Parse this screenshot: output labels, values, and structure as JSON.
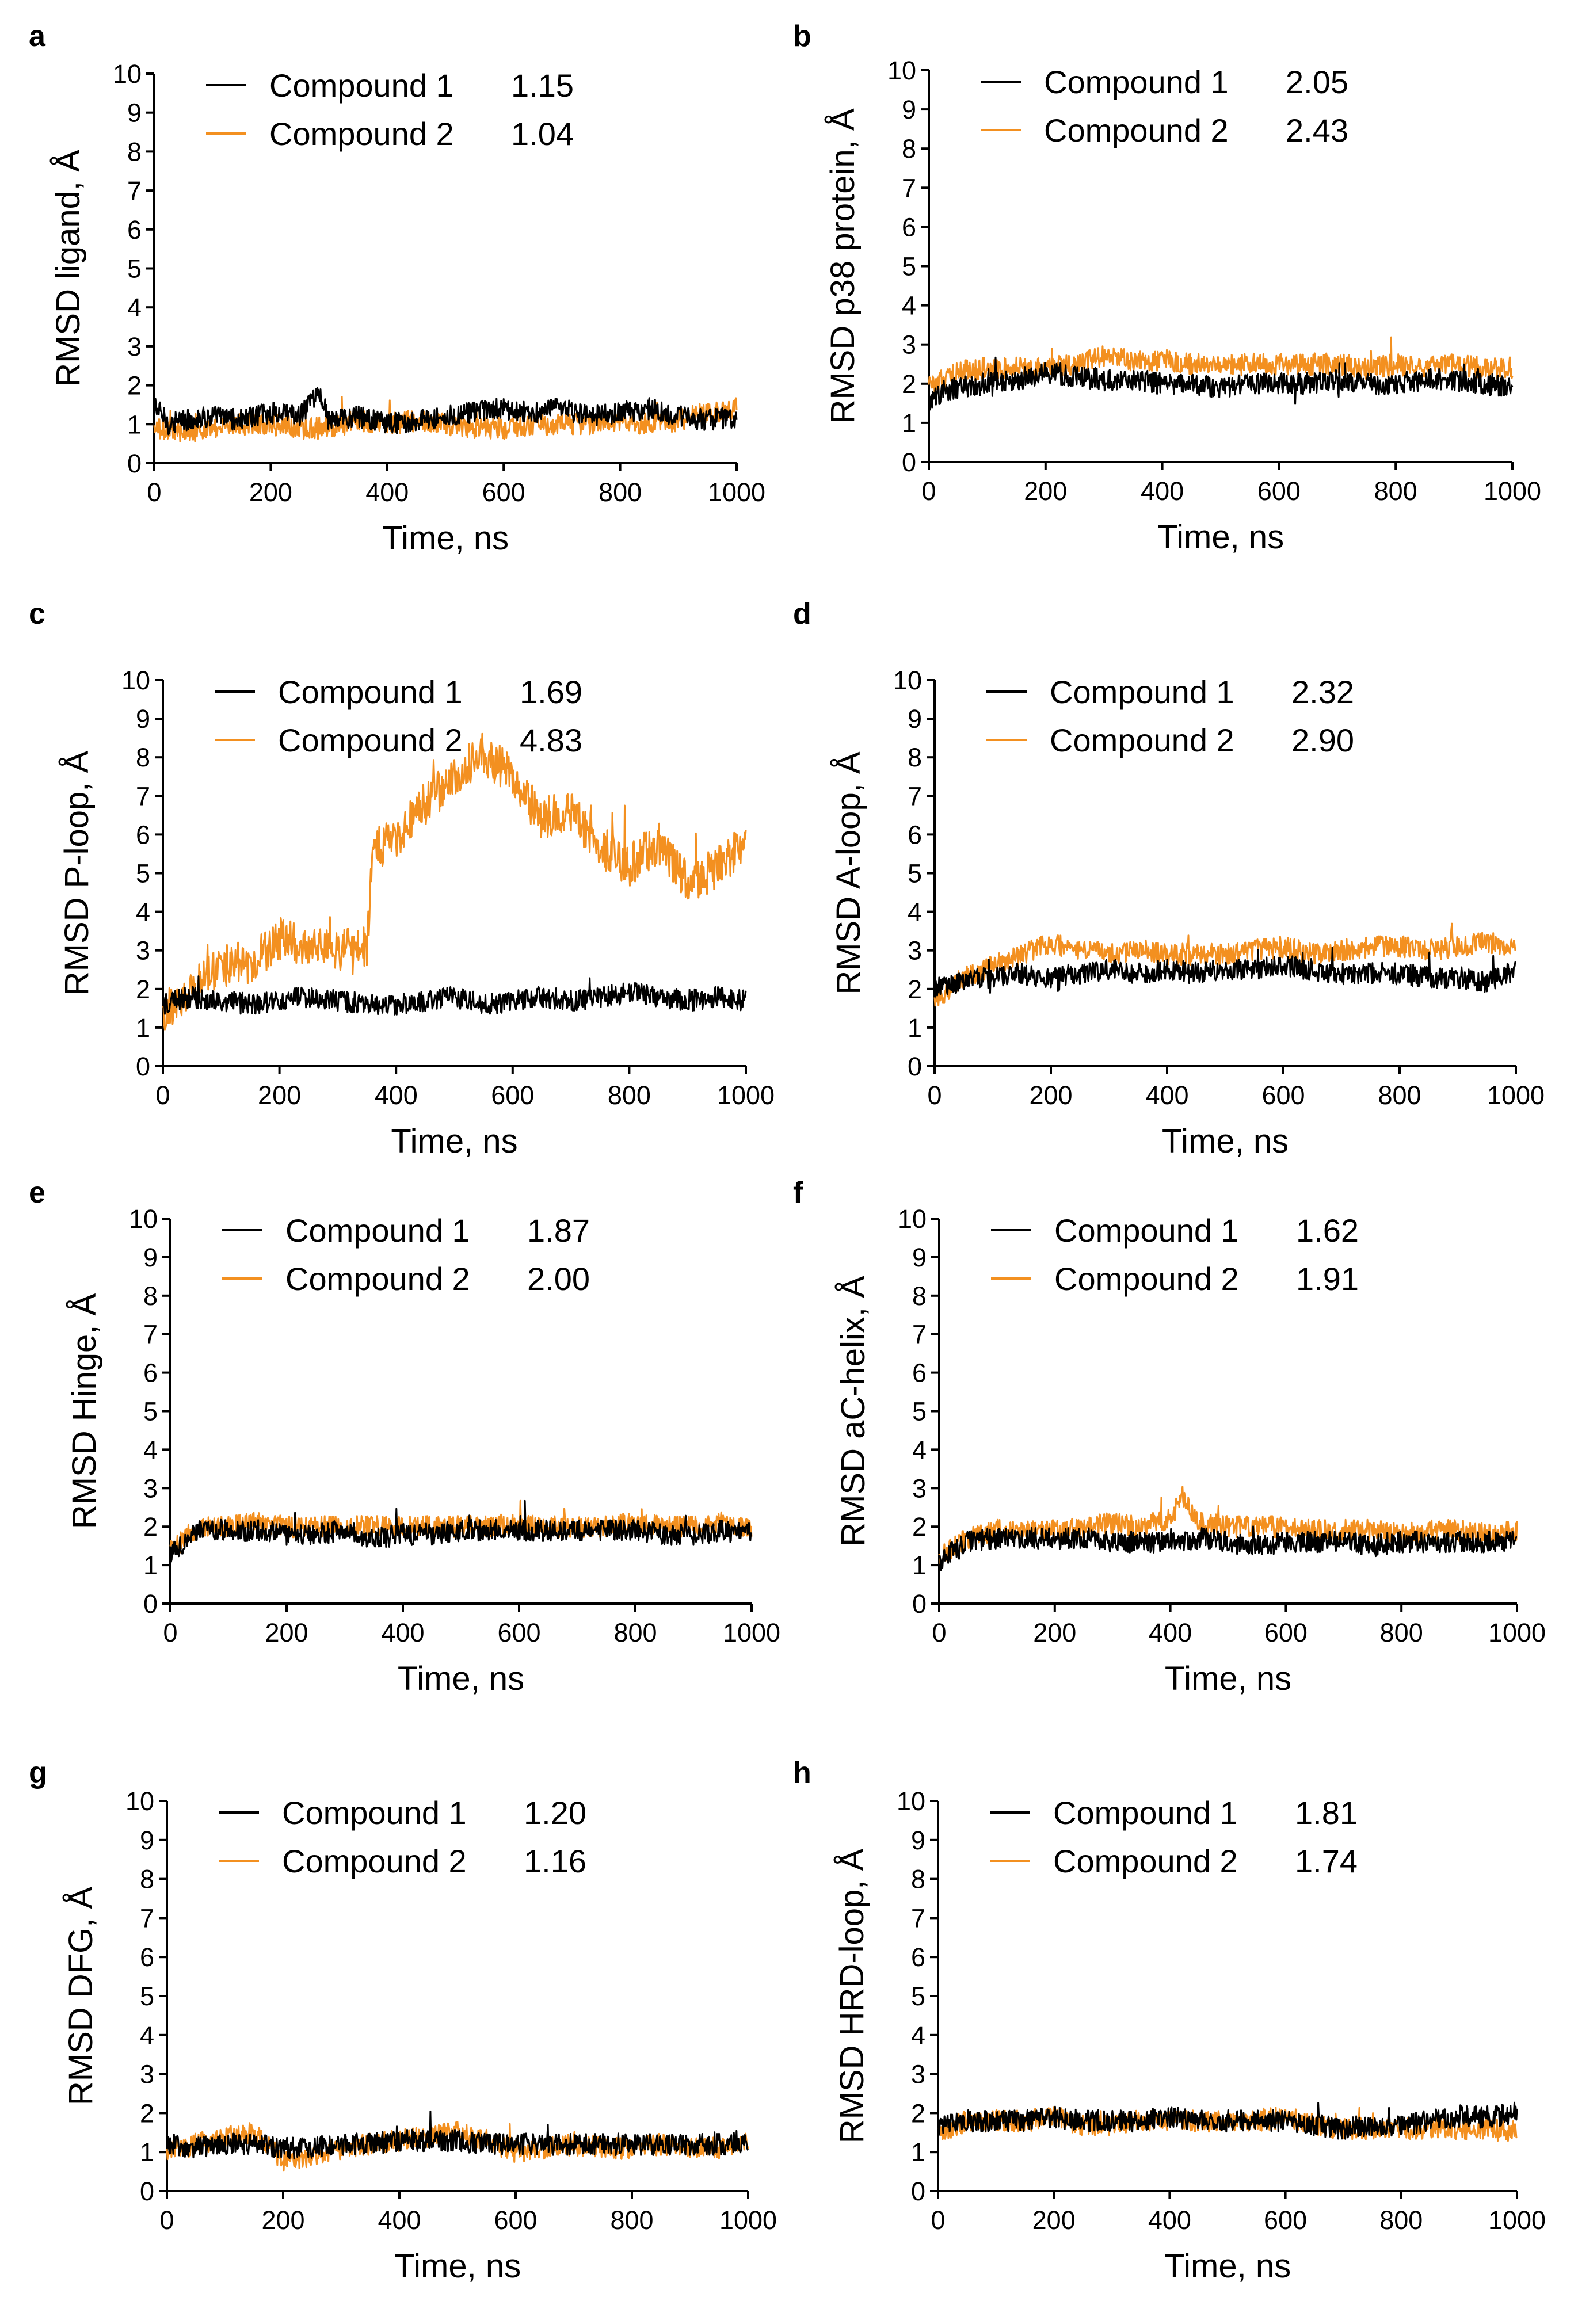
{
  "colors": {
    "compound_1": "#000000",
    "compound_2": "#f39020",
    "axis": "#000000"
  },
  "series_names": [
    "Compound 1",
    "Compound 2"
  ],
  "chart_data": [
    {
      "panel": "a",
      "type": "line",
      "xlabel": "Time, ns",
      "ylabel": "RMSD ligand, Å",
      "xlim": [
        0,
        1000
      ],
      "ylim": [
        0,
        10
      ],
      "xticks": [
        0,
        200,
        400,
        600,
        800,
        1000
      ],
      "yticks": [
        0,
        1,
        2,
        3,
        4,
        5,
        6,
        7,
        8,
        9,
        10
      ],
      "legend_position": "top",
      "series": [
        {
          "name": "Compound 1",
          "mean_label": "1.15",
          "x": [
            0,
            25,
            50,
            100,
            150,
            200,
            250,
            285,
            300,
            350,
            400,
            450,
            500,
            550,
            600,
            650,
            700,
            750,
            800,
            850,
            900,
            950,
            1000
          ],
          "y": [
            1.5,
            1.0,
            1.1,
            1.2,
            1.1,
            1.3,
            1.2,
            1.8,
            1.1,
            1.2,
            1.0,
            1.1,
            1.2,
            1.3,
            1.4,
            1.3,
            1.4,
            1.2,
            1.3,
            1.4,
            1.2,
            1.1,
            1.2
          ]
        },
        {
          "name": "Compound 2",
          "mean_label": "1.04",
          "x": [
            0,
            50,
            100,
            150,
            200,
            250,
            300,
            350,
            400,
            450,
            500,
            550,
            600,
            650,
            700,
            750,
            800,
            850,
            900,
            950,
            1000
          ],
          "y": [
            0.9,
            0.8,
            0.9,
            1.0,
            1.0,
            0.9,
            0.9,
            1.1,
            1.0,
            1.1,
            1.0,
            0.9,
            0.9,
            1.0,
            1.0,
            1.0,
            1.1,
            1.0,
            1.1,
            1.3,
            1.4
          ]
        }
      ]
    },
    {
      "panel": "b",
      "type": "line",
      "xlabel": "Time, ns",
      "ylabel": "RMSD p38 protein, Å",
      "xlim": [
        0,
        1000
      ],
      "ylim": [
        0,
        10
      ],
      "xticks": [
        0,
        200,
        400,
        600,
        800,
        1000
      ],
      "yticks": [
        0,
        1,
        2,
        3,
        4,
        5,
        6,
        7,
        8,
        9,
        10
      ],
      "legend_position": "top",
      "series": [
        {
          "name": "Compound 1",
          "mean_label": "2.05",
          "x": [
            0,
            25,
            50,
            100,
            150,
            200,
            250,
            300,
            350,
            400,
            450,
            500,
            550,
            600,
            650,
            700,
            750,
            800,
            850,
            900,
            950,
            1000
          ],
          "y": [
            1.5,
            1.8,
            1.9,
            2.0,
            2.1,
            2.3,
            2.2,
            2.1,
            2.1,
            2.0,
            2.0,
            1.9,
            2.0,
            2.0,
            2.0,
            2.1,
            2.0,
            2.0,
            2.1,
            2.1,
            2.0,
            1.9
          ]
        },
        {
          "name": "Compound 2",
          "mean_label": "2.43",
          "x": [
            0,
            25,
            50,
            100,
            150,
            200,
            250,
            300,
            350,
            400,
            450,
            500,
            550,
            600,
            650,
            700,
            750,
            800,
            850,
            900,
            950,
            1000
          ],
          "y": [
            1.9,
            2.1,
            2.3,
            2.4,
            2.4,
            2.4,
            2.5,
            2.7,
            2.6,
            2.6,
            2.5,
            2.5,
            2.5,
            2.5,
            2.5,
            2.5,
            2.4,
            2.5,
            2.4,
            2.5,
            2.4,
            2.4
          ]
        }
      ]
    },
    {
      "panel": "c",
      "type": "line",
      "xlabel": "Time, ns",
      "ylabel": "RMSD P-loop, Å",
      "xlim": [
        0,
        1000
      ],
      "ylim": [
        0,
        10
      ],
      "xticks": [
        0,
        200,
        400,
        600,
        800,
        1000
      ],
      "yticks": [
        0,
        1,
        2,
        3,
        4,
        5,
        6,
        7,
        8,
        9,
        10
      ],
      "legend_position": "top",
      "series": [
        {
          "name": "Compound 1",
          "mean_label": "1.69",
          "x": [
            0,
            50,
            100,
            150,
            200,
            250,
            300,
            350,
            400,
            450,
            500,
            550,
            600,
            650,
            700,
            750,
            800,
            850,
            900,
            950,
            1000
          ],
          "y": [
            1.6,
            1.8,
            1.7,
            1.6,
            1.7,
            1.8,
            1.7,
            1.6,
            1.6,
            1.7,
            1.8,
            1.6,
            1.7,
            1.8,
            1.7,
            1.8,
            1.9,
            1.8,
            1.7,
            1.8,
            1.7
          ]
        },
        {
          "name": "Compound 2",
          "mean_label": "4.83",
          "x": [
            0,
            50,
            100,
            150,
            200,
            250,
            300,
            350,
            360,
            400,
            450,
            500,
            550,
            600,
            650,
            700,
            750,
            800,
            850,
            900,
            950,
            1000
          ],
          "y": [
            1.4,
            2.0,
            2.6,
            2.7,
            3.3,
            3.1,
            3.0,
            3.1,
            5.6,
            5.9,
            6.8,
            7.5,
            8.1,
            7.5,
            6.4,
            6.6,
            5.7,
            5.2,
            5.8,
            4.8,
            5.1,
            5.9
          ]
        }
      ]
    },
    {
      "panel": "d",
      "type": "line",
      "xlabel": "Time, ns",
      "ylabel": "RMSD A-loop, Å",
      "xlim": [
        0,
        1000
      ],
      "ylim": [
        0,
        10
      ],
      "xticks": [
        0,
        200,
        400,
        600,
        800,
        1000
      ],
      "yticks": [
        0,
        1,
        2,
        3,
        4,
        5,
        6,
        7,
        8,
        9,
        10
      ],
      "legend_position": "top",
      "series": [
        {
          "name": "Compound 1",
          "mean_label": "2.32",
          "x": [
            0,
            50,
            100,
            150,
            200,
            250,
            300,
            350,
            400,
            450,
            500,
            550,
            600,
            650,
            700,
            750,
            800,
            850,
            900,
            950,
            1000
          ],
          "y": [
            2.0,
            2.2,
            2.3,
            2.4,
            2.3,
            2.4,
            2.5,
            2.4,
            2.5,
            2.4,
            2.5,
            2.5,
            2.6,
            2.5,
            2.4,
            2.4,
            2.4,
            2.3,
            2.3,
            2.2,
            2.5
          ]
        },
        {
          "name": "Compound 2",
          "mean_label": "2.90",
          "x": [
            0,
            50,
            100,
            150,
            200,
            250,
            300,
            350,
            400,
            450,
            500,
            550,
            600,
            650,
            700,
            750,
            800,
            850,
            900,
            950,
            1000
          ],
          "y": [
            1.7,
            2.3,
            2.6,
            2.9,
            3.2,
            3.0,
            2.9,
            3.0,
            2.9,
            2.9,
            2.9,
            3.0,
            3.1,
            2.9,
            3.0,
            3.1,
            3.1,
            3.0,
            3.1,
            3.2,
            3.1
          ]
        }
      ]
    },
    {
      "panel": "e",
      "type": "line",
      "xlabel": "Time, ns",
      "ylabel": "RMSD Hinge, Å",
      "xlim": [
        0,
        1000
      ],
      "ylim": [
        0,
        10
      ],
      "xticks": [
        0,
        200,
        400,
        600,
        800,
        1000
      ],
      "yticks": [
        0,
        1,
        2,
        3,
        4,
        5,
        6,
        7,
        8,
        9,
        10
      ],
      "legend_position": "top",
      "series": [
        {
          "name": "Compound 1",
          "mean_label": "1.87",
          "x": [
            0,
            50,
            100,
            150,
            200,
            250,
            300,
            350,
            400,
            450,
            500,
            550,
            600,
            650,
            700,
            750,
            800,
            850,
            900,
            950,
            1000
          ],
          "y": [
            1.3,
            1.9,
            1.9,
            1.9,
            1.8,
            1.8,
            1.9,
            1.7,
            1.8,
            1.8,
            1.9,
            1.9,
            1.9,
            1.9,
            1.9,
            1.9,
            1.9,
            1.8,
            1.8,
            1.9,
            1.8
          ]
        },
        {
          "name": "Compound 2",
          "mean_label": "2.00",
          "x": [
            0,
            50,
            100,
            150,
            200,
            250,
            300,
            350,
            400,
            450,
            500,
            550,
            600,
            650,
            700,
            750,
            800,
            850,
            900,
            950,
            1000
          ],
          "y": [
            1.4,
            2.0,
            2.0,
            2.1,
            2.0,
            2.0,
            2.0,
            2.0,
            2.0,
            2.0,
            2.0,
            2.0,
            2.1,
            2.0,
            2.0,
            2.0,
            2.1,
            2.0,
            2.0,
            2.1,
            2.0
          ]
        }
      ]
    },
    {
      "panel": "f",
      "type": "line",
      "xlabel": "Time, ns",
      "ylabel": "RMSD aC-helix, Å",
      "xlim": [
        0,
        1000
      ],
      "ylim": [
        0,
        10
      ],
      "xticks": [
        0,
        200,
        400,
        600,
        800,
        1000
      ],
      "yticks": [
        0,
        1,
        2,
        3,
        4,
        5,
        6,
        7,
        8,
        9,
        10
      ],
      "legend_position": "top",
      "series": [
        {
          "name": "Compound 1",
          "mean_label": "1.62",
          "x": [
            0,
            50,
            100,
            150,
            200,
            250,
            300,
            350,
            400,
            450,
            500,
            550,
            600,
            650,
            700,
            750,
            800,
            850,
            900,
            950,
            1000
          ],
          "y": [
            1.1,
            1.6,
            1.7,
            1.7,
            1.7,
            1.7,
            1.6,
            1.6,
            1.6,
            1.7,
            1.6,
            1.5,
            1.6,
            1.6,
            1.6,
            1.5,
            1.6,
            1.6,
            1.6,
            1.6,
            1.6
          ]
        },
        {
          "name": "Compound 2",
          "mean_label": "1.91",
          "x": [
            0,
            50,
            100,
            150,
            200,
            250,
            300,
            350,
            400,
            420,
            450,
            500,
            550,
            600,
            650,
            700,
            750,
            800,
            850,
            900,
            950,
            1000
          ],
          "y": [
            1.2,
            1.7,
            1.9,
            1.9,
            1.9,
            2.0,
            2.1,
            2.0,
            2.2,
            2.8,
            2.1,
            2.0,
            2.0,
            2.0,
            1.9,
            1.9,
            1.9,
            1.8,
            1.9,
            1.9,
            1.8,
            1.9
          ]
        }
      ]
    },
    {
      "panel": "g",
      "type": "line",
      "xlabel": "Time, ns",
      "ylabel": "RMSD DFG, Å",
      "xlim": [
        0,
        1000
      ],
      "ylim": [
        0,
        10
      ],
      "xticks": [
        0,
        200,
        400,
        600,
        800,
        1000
      ],
      "yticks": [
        0,
        1,
        2,
        3,
        4,
        5,
        6,
        7,
        8,
        9,
        10
      ],
      "legend_position": "top",
      "series": [
        {
          "name": "Compound 1",
          "mean_label": "1.20",
          "x": [
            0,
            50,
            100,
            150,
            200,
            250,
            300,
            350,
            400,
            450,
            500,
            550,
            600,
            650,
            700,
            750,
            800,
            850,
            900,
            950,
            1000
          ],
          "y": [
            1.2,
            1.1,
            1.2,
            1.2,
            1.1,
            1.1,
            1.2,
            1.2,
            1.3,
            1.3,
            1.3,
            1.2,
            1.2,
            1.2,
            1.2,
            1.2,
            1.2,
            1.2,
            1.2,
            1.2,
            1.2
          ]
        },
        {
          "name": "Compound 2",
          "mean_label": "1.16",
          "x": [
            0,
            50,
            100,
            150,
            200,
            250,
            300,
            350,
            400,
            450,
            500,
            550,
            600,
            650,
            700,
            750,
            800,
            850,
            900,
            950,
            1000
          ],
          "y": [
            1.0,
            1.2,
            1.4,
            1.5,
            0.8,
            0.9,
            1.1,
            1.2,
            1.3,
            1.4,
            1.5,
            1.3,
            1.0,
            1.1,
            1.2,
            1.1,
            1.1,
            1.2,
            1.1,
            1.1,
            1.2
          ]
        }
      ]
    },
    {
      "panel": "h",
      "type": "line",
      "xlabel": "Time, ns",
      "ylabel": "RMSD HRD-loop, Å",
      "xlim": [
        0,
        1000
      ],
      "ylim": [
        0,
        10
      ],
      "xticks": [
        0,
        200,
        400,
        600,
        800,
        1000
      ],
      "yticks": [
        0,
        1,
        2,
        3,
        4,
        5,
        6,
        7,
        8,
        9,
        10
      ],
      "legend_position": "top",
      "series": [
        {
          "name": "Compound 1",
          "mean_label": "1.81",
          "x": [
            0,
            50,
            100,
            150,
            200,
            250,
            300,
            350,
            400,
            450,
            500,
            550,
            600,
            650,
            700,
            750,
            800,
            850,
            900,
            950,
            1000
          ],
          "y": [
            1.7,
            1.8,
            1.8,
            1.8,
            1.9,
            1.8,
            1.8,
            1.8,
            1.9,
            1.8,
            1.8,
            1.8,
            1.8,
            1.7,
            1.6,
            1.7,
            1.7,
            1.8,
            1.9,
            1.9,
            2.0
          ]
        },
        {
          "name": "Compound 2",
          "mean_label": "1.74",
          "x": [
            0,
            50,
            100,
            150,
            200,
            250,
            300,
            350,
            400,
            450,
            500,
            550,
            600,
            650,
            700,
            750,
            800,
            850,
            900,
            950,
            1000
          ],
          "y": [
            1.5,
            1.8,
            1.8,
            1.8,
            1.9,
            1.7,
            1.7,
            1.8,
            1.8,
            1.8,
            1.8,
            1.8,
            1.9,
            1.7,
            1.6,
            1.6,
            1.6,
            1.6,
            1.6,
            1.6,
            1.5
          ]
        }
      ]
    }
  ]
}
